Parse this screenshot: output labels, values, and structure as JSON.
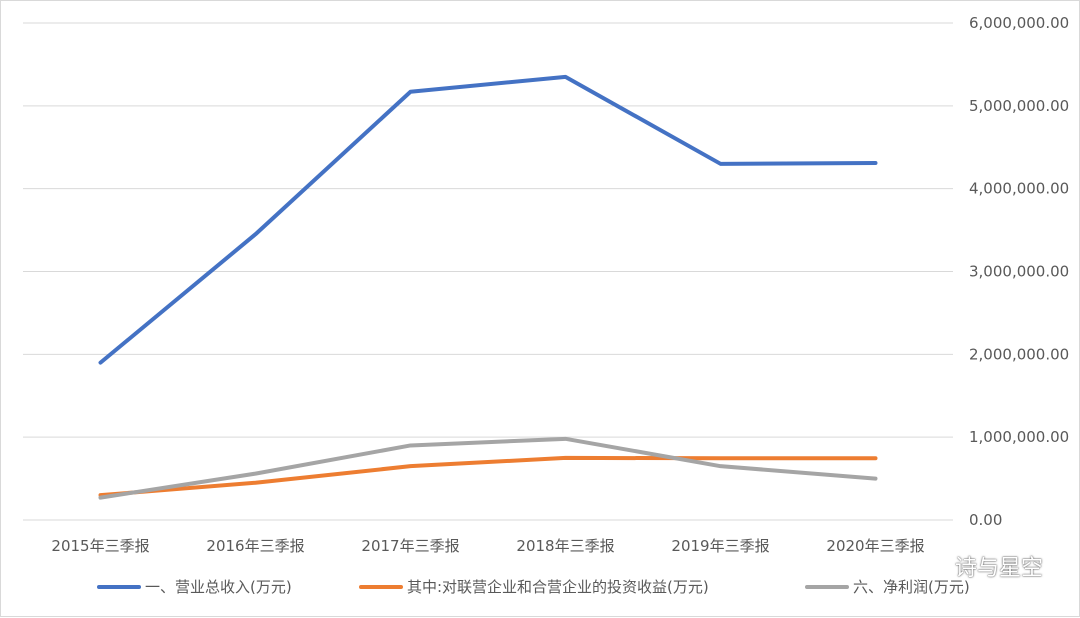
{
  "chart_data": {
    "type": "line",
    "categories": [
      "2015年三季报",
      "2016年三季报",
      "2017年三季报",
      "2018年三季报",
      "2019年三季报",
      "2020年三季报"
    ],
    "ylim": [
      0,
      6000000
    ],
    "yticks": [
      0,
      1000000,
      2000000,
      3000000,
      4000000,
      5000000,
      6000000
    ],
    "ytick_labels": [
      "0.00",
      "1,000,000.00",
      "2,000,000.00",
      "3,000,000.00",
      "4,000,000.00",
      "5,000,000.00",
      "6,000,000.00"
    ],
    "y_axis_side": "right",
    "grid": true,
    "legend_position": "bottom",
    "series": [
      {
        "name": "一、营业总收入(万元)",
        "color": "#4472c4",
        "values": [
          1900000,
          3450000,
          5170000,
          5350000,
          4300000,
          4310000
        ]
      },
      {
        "name": "其中:对联营企业和合营企业的投资收益(万元)",
        "color": "#ed7d31",
        "values": [
          300000,
          450000,
          650000,
          750000,
          745000,
          745000
        ]
      },
      {
        "name": "六、净利润(万元)",
        "color": "#a5a5a5",
        "values": [
          270000,
          560000,
          900000,
          980000,
          650000,
          500000
        ]
      }
    ]
  },
  "watermark": {
    "text": "诗与星空",
    "icon": "wechat-icon"
  }
}
